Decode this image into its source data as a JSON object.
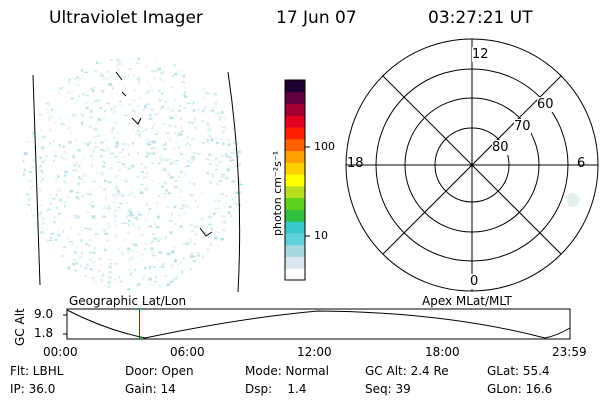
{
  "header": {
    "title": "Ultraviolet Imager",
    "date": "17 Jun 07",
    "time": "03:27:21 UT"
  },
  "colorbar": {
    "label": "photon cm⁻²s⁻¹",
    "scale": "log",
    "ticks": [
      "100",
      "10"
    ],
    "colors": [
      "#ffffff",
      "#d8e8ee",
      "#a8d8e0",
      "#60d0d8",
      "#38c8c8",
      "#30c040",
      "#60d020",
      "#b8e020",
      "#ffff00",
      "#ffd000",
      "#ffa000",
      "#ff6000",
      "#ff2000",
      "#e00020",
      "#a00030",
      "#600040",
      "#200030"
    ]
  },
  "polar_plot": {
    "clock_labels": {
      "top": "12",
      "left": "18",
      "right": "6",
      "bottom": "0"
    },
    "lat_labels": [
      "60",
      "70",
      "80"
    ]
  },
  "timeline": {
    "ylabel": "GC Alt",
    "yticks": [
      "9.0",
      "1.8"
    ],
    "left_title": "Geographic Lat/Lon",
    "right_title": "Apex MLat/MLT",
    "xticks": [
      "00:00",
      "06:00",
      "12:00",
      "18:00",
      "23:59"
    ],
    "current_time_fraction": 0.1441,
    "marker_color": "#cc0000"
  },
  "footer": [
    [
      "Flt: LBHL",
      "Door: Open",
      "Mode: Normal",
      "GC Alt: 2.4 Re",
      "GLat: 55.4"
    ],
    [
      "IP: 36.0",
      "Gain: 14",
      "Dsp:    1.4",
      "Seq: 39",
      "GLon: 16.6"
    ]
  ]
}
